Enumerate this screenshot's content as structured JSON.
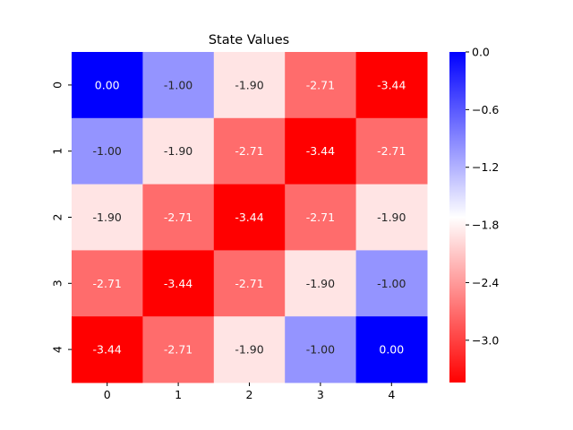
{
  "chart_data": {
    "type": "heatmap",
    "title": "State Values",
    "xlabel": "",
    "ylabel": "",
    "x_categories": [
      "0",
      "1",
      "2",
      "3",
      "4"
    ],
    "y_categories": [
      "0",
      "1",
      "2",
      "3",
      "4"
    ],
    "values": [
      [
        0.0,
        -1.0,
        -1.9,
        -2.71,
        -3.44
      ],
      [
        -1.0,
        -1.9,
        -2.71,
        -3.44,
        -2.71
      ],
      [
        -1.9,
        -2.71,
        -3.44,
        -2.71,
        -1.9
      ],
      [
        -2.71,
        -3.44,
        -2.71,
        -1.9,
        -1.0
      ],
      [
        -3.44,
        -2.71,
        -1.9,
        -1.0,
        0.0
      ]
    ],
    "value_labels": [
      [
        "0.00",
        "-1.00",
        "-1.90",
        "-2.71",
        "-3.44"
      ],
      [
        "-1.00",
        "-1.90",
        "-2.71",
        "-3.44",
        "-2.71"
      ],
      [
        "-1.90",
        "-2.71",
        "-3.44",
        "-2.71",
        "-1.90"
      ],
      [
        "-2.71",
        "-3.44",
        "-2.71",
        "-1.90",
        "-1.00"
      ],
      [
        "-3.44",
        "-2.71",
        "-1.90",
        "-1.00",
        "0.00"
      ]
    ],
    "color_range": [
      -3.44,
      0.0
    ],
    "colormap": "bwr_r",
    "colors": {
      "low": "#ff0000",
      "mid": "#ffffff",
      "high": "#0000ff"
    },
    "colorbar": {
      "ticks": [
        0.0,
        -0.6,
        -1.2,
        -1.8,
        -2.4,
        -3.0
      ],
      "tick_labels": [
        "0.0",
        "−0.6",
        "−1.2",
        "−1.8",
        "−2.4",
        "−3.0"
      ]
    },
    "grid": false,
    "legend": "colorbar-right"
  }
}
